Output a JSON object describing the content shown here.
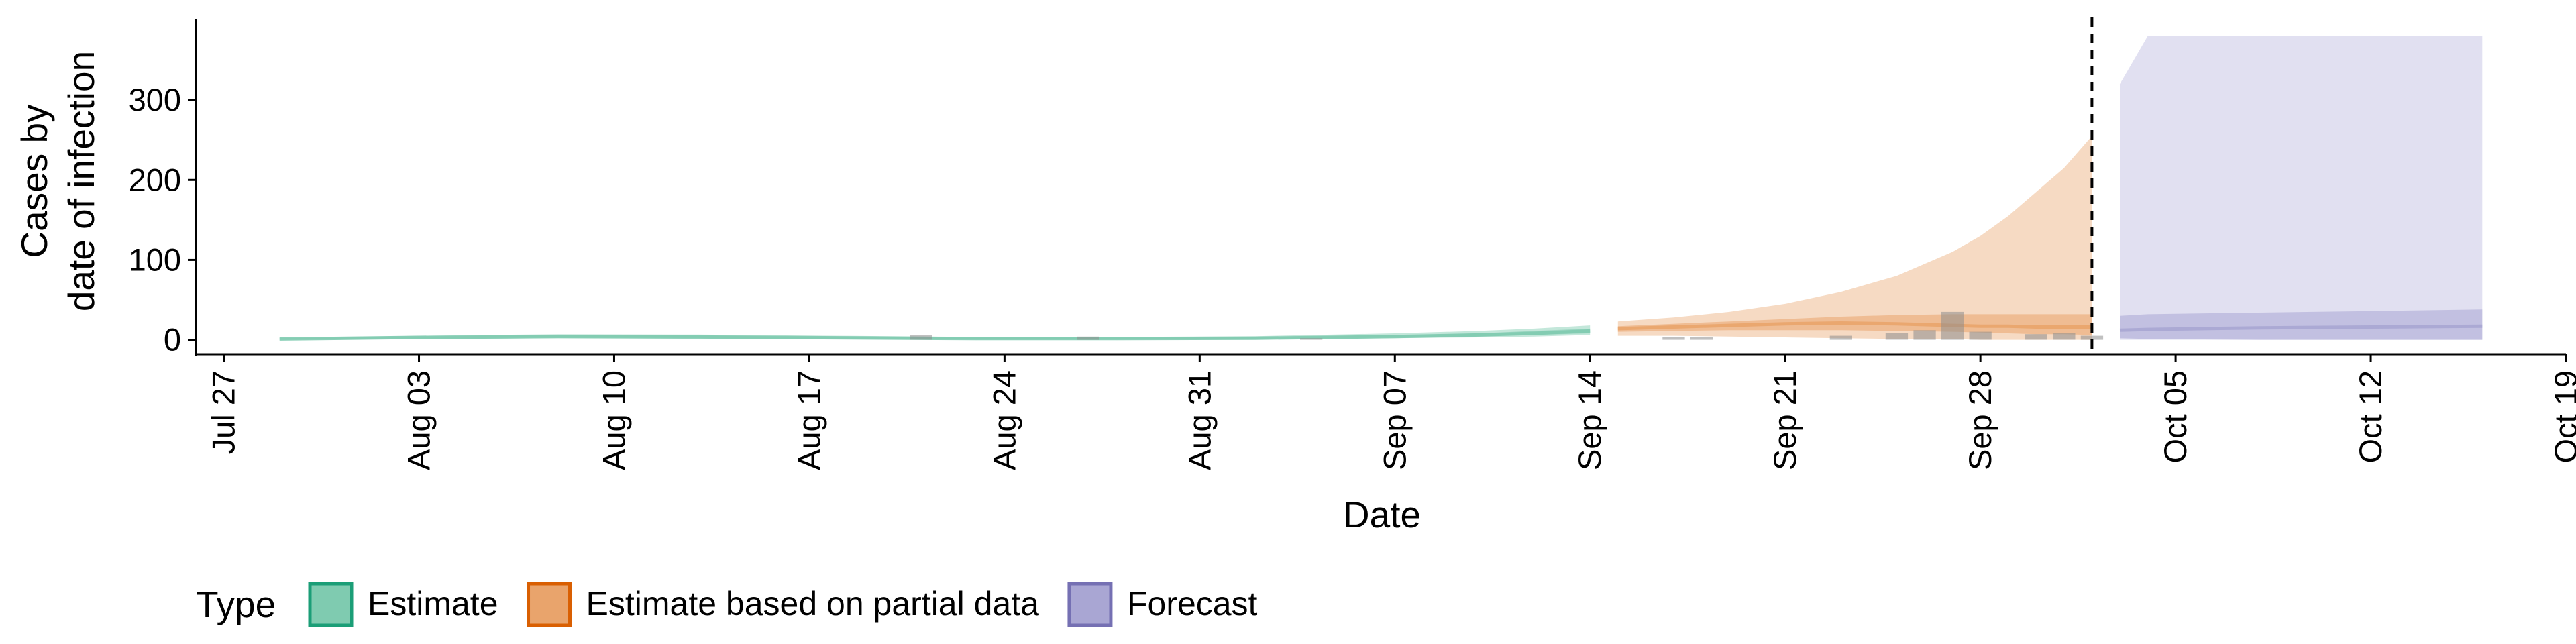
{
  "chart_data": {
    "type": "area",
    "xlabel": "Date",
    "ylabel_lines": [
      "Cases by",
      "date of infection"
    ],
    "y_ticks": [
      0,
      100,
      200,
      300
    ],
    "ylim": [
      -18,
      400
    ],
    "x_ticks": [
      "2020-07-27",
      "2020-08-03",
      "2020-08-10",
      "2020-08-17",
      "2020-08-24",
      "2020-08-31",
      "2020-09-07",
      "2020-09-14",
      "2020-09-21",
      "2020-09-28",
      "2020-10-05",
      "2020-10-12",
      "2020-10-19"
    ],
    "x_tick_labels": [
      "Jul 27",
      "Aug 03",
      "Aug 10",
      "Aug 17",
      "Aug 24",
      "Aug 31",
      "Sep 07",
      "Sep 14",
      "Sep 21",
      "Sep 28",
      "Oct 05",
      "Oct 12",
      "Oct 19"
    ],
    "xlim": [
      "2020-07-26",
      "2020-10-19"
    ],
    "forecast_cutoff": "2020-10-02",
    "grid": false,
    "legend": {
      "title": "Type",
      "position": "bottom-left",
      "entries": [
        {
          "label": "Estimate",
          "fill": "#7fcbb0",
          "stroke": "#1b9e77"
        },
        {
          "label": "Estimate based on partial data",
          "fill": "#e9a46c",
          "stroke": "#d95f02"
        },
        {
          "label": "Forecast",
          "fill": "#a9a6d3",
          "stroke": "#7570b3"
        }
      ]
    },
    "observed_cases": [
      {
        "date": "2020-08-21",
        "value": 6
      },
      {
        "date": "2020-08-27",
        "value": 4
      },
      {
        "date": "2020-09-04",
        "value": 2
      },
      {
        "date": "2020-09-17",
        "value": 3
      },
      {
        "date": "2020-09-18",
        "value": 3
      },
      {
        "date": "2020-09-23",
        "value": 5
      },
      {
        "date": "2020-09-25",
        "value": 8
      },
      {
        "date": "2020-09-26",
        "value": 12
      },
      {
        "date": "2020-09-27",
        "value": 35
      },
      {
        "date": "2020-09-28",
        "value": 10
      },
      {
        "date": "2020-09-30",
        "value": 7
      },
      {
        "date": "2020-10-01",
        "value": 8
      },
      {
        "date": "2020-10-02",
        "value": 5
      }
    ],
    "series": [
      {
        "name": "Estimate",
        "dates": [
          "2020-07-29",
          "2020-08-03",
          "2020-08-08",
          "2020-08-13",
          "2020-08-18",
          "2020-08-23",
          "2020-08-28",
          "2020-09-02",
          "2020-09-07",
          "2020-09-10",
          "2020-09-12",
          "2020-09-14"
        ],
        "median": [
          1,
          3,
          4,
          3.5,
          2.5,
          1.5,
          1.5,
          2,
          4,
          6,
          8,
          11
        ],
        "lower_50": [
          0.5,
          2,
          3,
          2.5,
          1.5,
          0.8,
          0.8,
          1.2,
          3,
          4.5,
          6,
          8
        ],
        "upper_50": [
          1.5,
          4,
          5.5,
          5,
          3.5,
          2.3,
          2.3,
          3,
          5.5,
          8,
          11,
          14
        ],
        "lower_90": [
          0,
          1,
          2,
          1.5,
          1,
          0.3,
          0.3,
          0.6,
          2,
          3,
          4,
          6
        ],
        "upper_90": [
          2,
          5,
          7,
          6.5,
          5,
          3.5,
          3.5,
          4.5,
          8,
          11,
          14,
          18
        ]
      },
      {
        "name": "Estimate based on partial data",
        "dates": [
          "2020-09-15",
          "2020-09-17",
          "2020-09-19",
          "2020-09-21",
          "2020-09-23",
          "2020-09-25",
          "2020-09-27",
          "2020-09-28",
          "2020-09-29",
          "2020-09-30",
          "2020-10-01",
          "2020-10-02"
        ],
        "median": [
          14,
          16,
          18,
          20,
          21,
          20,
          18,
          17,
          17,
          16,
          16,
          16
        ],
        "lower_50": [
          10,
          11,
          12,
          12,
          12,
          11,
          10,
          9,
          8,
          7,
          7,
          6
        ],
        "upper_50": [
          17,
          20,
          23,
          26,
          29,
          31,
          32,
          32,
          32,
          32,
          32,
          32
        ],
        "lower_90": [
          5,
          5,
          4,
          3,
          2,
          1,
          1,
          0,
          0,
          0,
          0,
          0
        ],
        "upper_90": [
          23,
          28,
          35,
          45,
          60,
          80,
          110,
          130,
          155,
          185,
          215,
          255
        ]
      },
      {
        "name": "Forecast",
        "dates": [
          "2020-10-03",
          "2020-10-04",
          "2020-10-08",
          "2020-10-12",
          "2020-10-16"
        ],
        "median": [
          12,
          13,
          15,
          16,
          17
        ],
        "lower_50": [
          2,
          1,
          0,
          0,
          0
        ],
        "upper_50": [
          30,
          32,
          34,
          36,
          38
        ],
        "lower_90": [
          0,
          0,
          0,
          0,
          0
        ],
        "upper_90": [
          320,
          380,
          380,
          380,
          380
        ]
      }
    ]
  }
}
